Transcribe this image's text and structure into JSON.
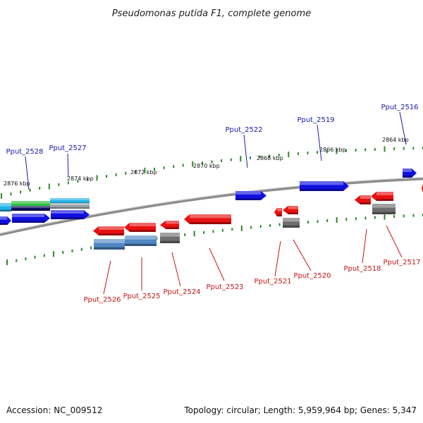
{
  "title": "Pseudomonas putida F1, complete genome",
  "footer": {
    "accession": "Accession: NC_009512",
    "summary": "Topology: circular; Length: 5,959,964 bp; Genes: 5,347"
  },
  "colors": {
    "forward_gene": "#1010e0",
    "reverse_gene": "#e81010",
    "forward_label": "#1a1aa8",
    "reverse_label": "#c81414",
    "tick": "#2d8a2d",
    "backbone": "#8a8a8a",
    "cds_gray": "#6e6e6e",
    "cds_steel": "#4f88c4",
    "cds_cyan": "#22b4e6",
    "cds_green": "#2fbf3a",
    "cds_navy": "#101060"
  },
  "scale_ticks": [
    {
      "label": "2876 kbp"
    },
    {
      "label": "2874 kbp"
    },
    {
      "label": "2872 kbp"
    },
    {
      "label": "2870 kbp"
    },
    {
      "label": "2868 kbp"
    },
    {
      "label": "2866 kbp"
    },
    {
      "label": "2864 kbp"
    }
  ],
  "genes_forward": [
    {
      "label": "Pput_2528"
    },
    {
      "label": "Pput_2527"
    },
    {
      "label": "Pput_2522"
    },
    {
      "label": "Pput_2519"
    },
    {
      "label": "Pput_2516"
    }
  ],
  "genes_reverse": [
    {
      "label": "Pput_2526"
    },
    {
      "label": "Pput_2525"
    },
    {
      "label": "Pput_2524"
    },
    {
      "label": "Pput_2523"
    },
    {
      "label": "Pput_2521"
    },
    {
      "label": "Pput_2520"
    },
    {
      "label": "Pput_2518"
    },
    {
      "label": "Pput_2517"
    }
  ]
}
